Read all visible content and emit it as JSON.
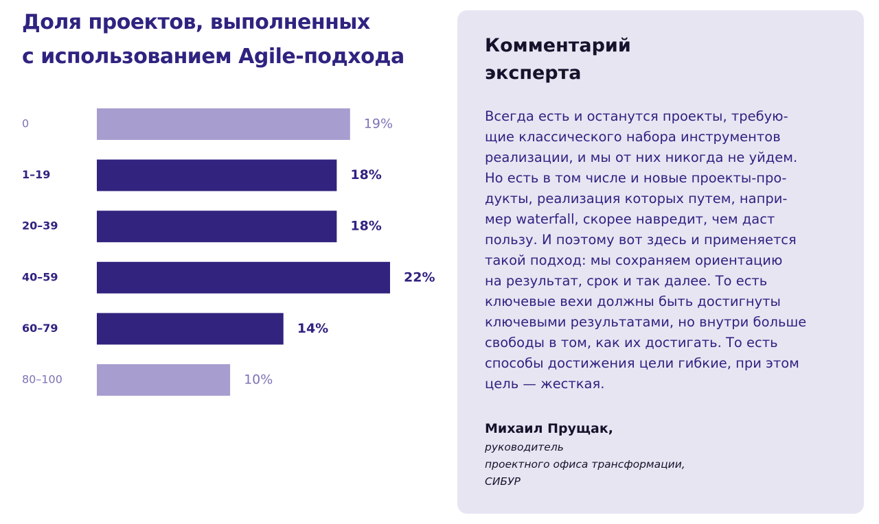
{
  "chart_title": {
    "lines": [
      "Доля проектов, выполненных",
      "с использованием Agile-подхода"
    ]
  },
  "colors": {
    "dark_bar": "#32237f",
    "light_bar": "#a89dcf",
    "dark_text": "#2f2380",
    "light_text": "#7d73b5",
    "panel_bg": "#e8e5f3"
  },
  "chart_data": {
    "type": "bar",
    "orientation": "horizontal",
    "title": "Доля проектов, выполненных с использованием Agile-подхода",
    "categories": [
      "0",
      "1–19",
      "20–39",
      "40–59",
      "60–79",
      "80–100"
    ],
    "values": [
      19,
      18,
      18,
      22,
      14,
      10
    ],
    "value_labels": [
      "19%",
      "18%",
      "18%",
      "22%",
      "14%",
      "10%"
    ],
    "highlighted": [
      false,
      true,
      true,
      true,
      true,
      false
    ],
    "xlim": [
      0,
      22
    ],
    "grid": false,
    "legend": "none"
  },
  "expert": {
    "heading_lines": [
      "Комментарий",
      "эксперта"
    ],
    "quote_lines": [
      "Всегда есть и останутся проекты, требую-",
      "щие классического набора инструментов",
      "реализации, и мы от них никогда не уйдем.",
      "Но есть в том числе и новые проекты-про-",
      "дукты, реализация которых путем, напри-",
      "мер waterfall, скорее навредит, чем даст",
      "пользу. И поэтому вот здесь и применяется",
      "такой подход: мы сохраняем ориентацию",
      "на результат, срок и так далее. То есть",
      "ключевые вехи должны быть достигнуты",
      "ключевыми результатами, но внутри больше",
      "свободы в том, как их достигать. То есть",
      "способы достижения цели гибкие, при этом",
      "цель — жесткая."
    ],
    "author_name": "Михаил Прущак,",
    "author_role_lines": [
      "руководитель",
      "проектного офиса трансформации,",
      "СИБУР"
    ]
  }
}
